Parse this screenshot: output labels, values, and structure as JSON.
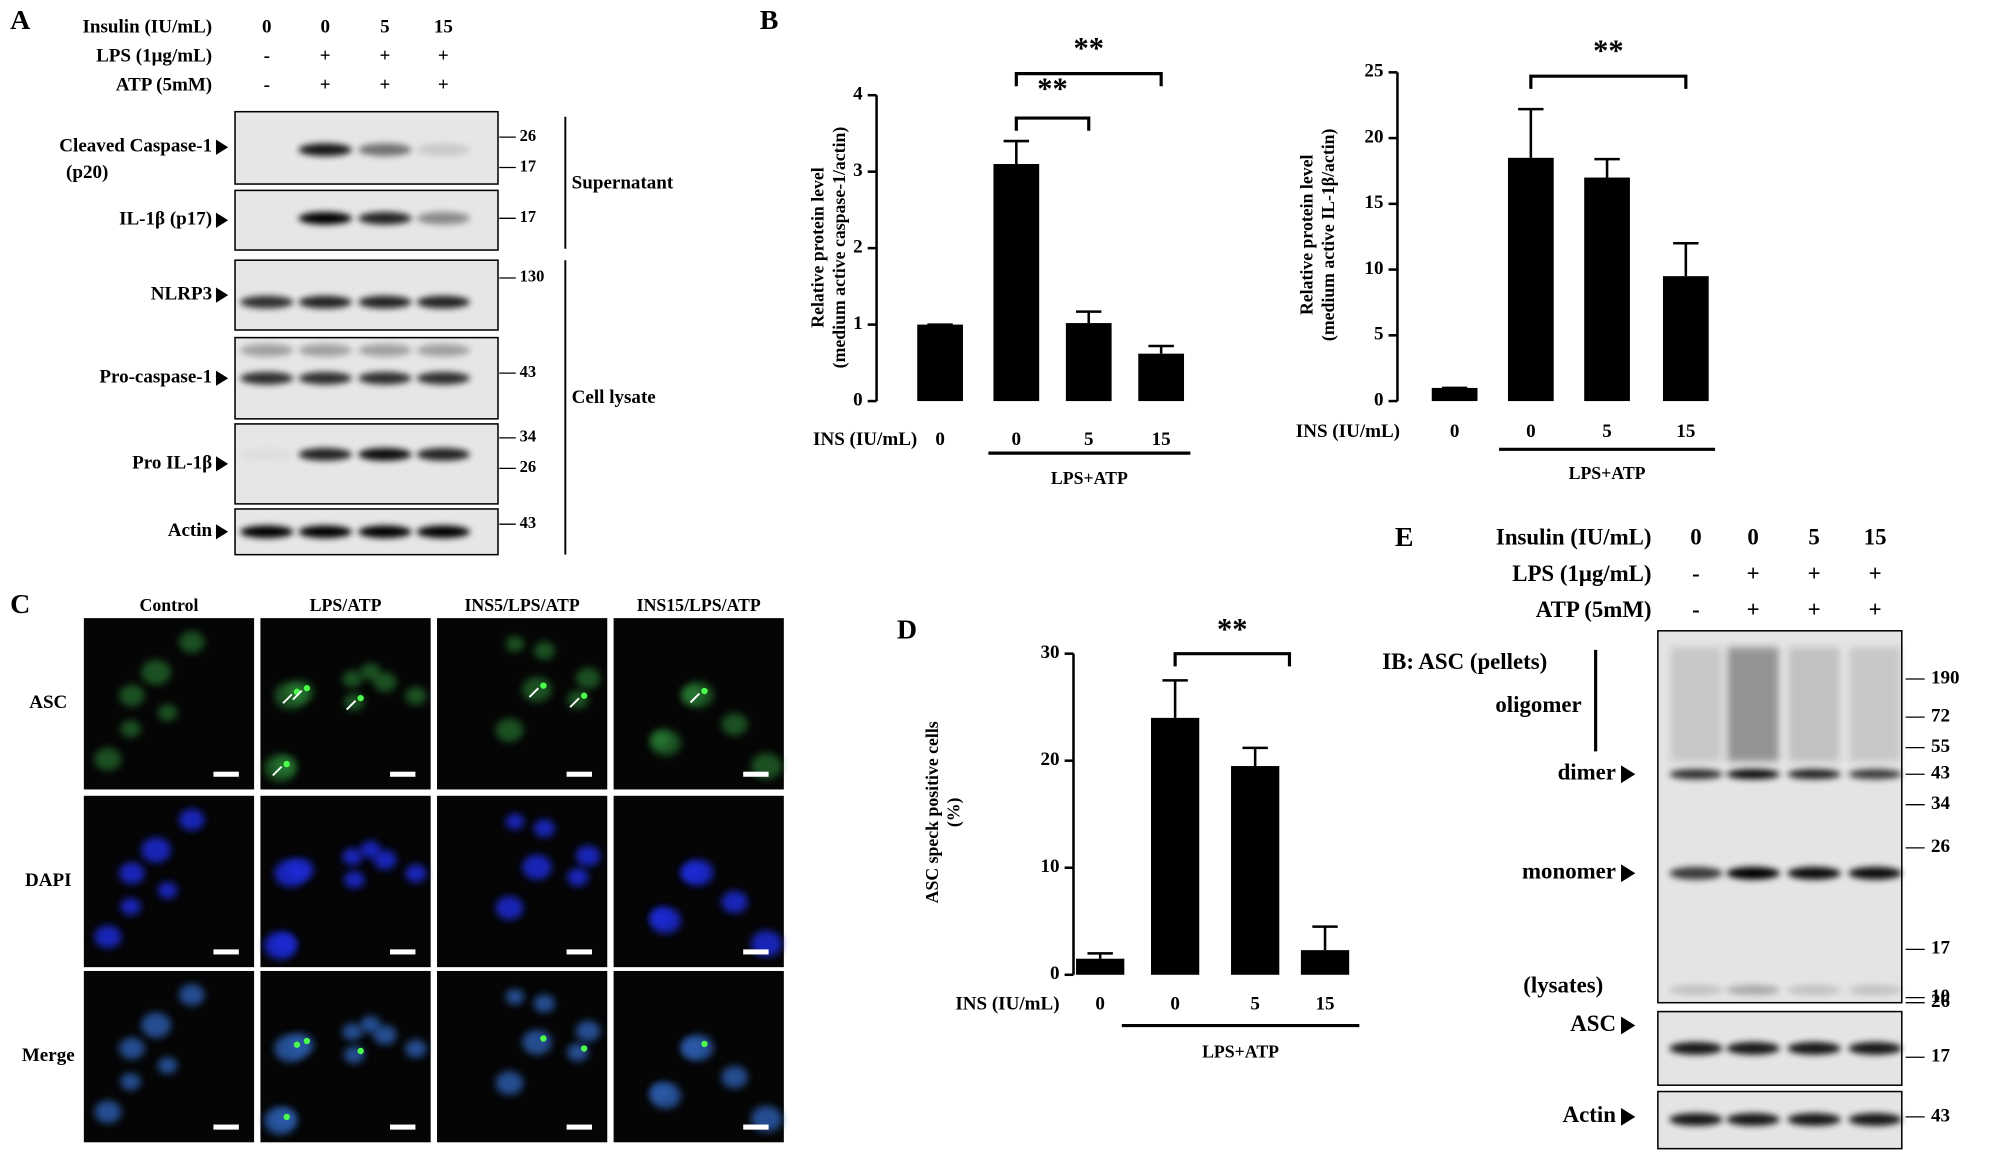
{
  "panels": {
    "A": {
      "label": "A",
      "conditions": [
        {
          "name": "Insulin (IU/mL)",
          "lanes": [
            "0",
            "0",
            "5",
            "15"
          ]
        },
        {
          "name": "LPS (1μg/mL)",
          "lanes": [
            "-",
            "+",
            "+",
            "+"
          ]
        },
        {
          "name": "ATP (5mM)",
          "lanes": [
            "-",
            "+",
            "+",
            "+"
          ]
        }
      ],
      "blots": [
        {
          "name": "Cleaved Caspase-1",
          "sub": "(p20)",
          "markers": [
            "26",
            "17"
          ]
        },
        {
          "name": "IL-1β (p17)",
          "markers": [
            "17"
          ]
        },
        {
          "name": "NLRP3",
          "markers": [
            "130"
          ]
        },
        {
          "name": "Pro-caspase-1",
          "markers": [
            "43"
          ]
        },
        {
          "name": "Pro IL-1β",
          "markers": [
            "34",
            "26"
          ]
        },
        {
          "name": "Actin",
          "markers": [
            "43"
          ]
        }
      ],
      "groups": [
        "Supernatant",
        "Cell lysate"
      ]
    },
    "C": {
      "label": "C",
      "columns": [
        "Control",
        "LPS/ATP",
        "INS5/LPS/ATP",
        "INS15/LPS/ATP"
      ],
      "rows": [
        "ASC",
        "DAPI",
        "Merge"
      ]
    },
    "E": {
      "label": "E",
      "conditions": [
        {
          "name": "Insulin (IU/mL)",
          "lanes": [
            "0",
            "0",
            "5",
            "15"
          ]
        },
        {
          "name": "LPS (1μg/mL)",
          "lanes": [
            "-",
            "+",
            "+",
            "+"
          ]
        },
        {
          "name": "ATP (5mM)",
          "lanes": [
            "-",
            "+",
            "+",
            "+"
          ]
        }
      ],
      "title": "IB: ASC (pellets)",
      "bands": [
        "oligomer",
        "dimer",
        "monomer"
      ],
      "markers": [
        "190",
        "72",
        "55",
        "43",
        "34",
        "26",
        "17",
        "10"
      ],
      "lysate_title": "(lysates)",
      "blots": [
        {
          "name": "ASC",
          "markers": [
            "26",
            "17"
          ]
        },
        {
          "name": "Actin",
          "markers": [
            "43"
          ]
        }
      ]
    }
  },
  "chart_data": [
    {
      "type": "bar",
      "panel_label": "B",
      "y_label": [
        "Relative protein level",
        "(medium active caspase-1/actin)"
      ],
      "x_label": "INS (IU/mL)",
      "categories": [
        "0",
        "0",
        "5",
        "15"
      ],
      "values": [
        1,
        3.1,
        1.02,
        0.62
      ],
      "errors": [
        0,
        0.3,
        0.15,
        0.1
      ],
      "color": "#000000",
      "ylim": [
        0,
        4
      ],
      "yticks": [
        0,
        1,
        2,
        3,
        4
      ],
      "group_label": "LPS+ATP",
      "annotations": [
        "**",
        "**"
      ]
    },
    {
      "type": "bar",
      "y_label": [
        "Relative protein level",
        "(medium active IL-1β/actin)"
      ],
      "x_label": "INS (IU/mL)",
      "categories": [
        "0",
        "0",
        "5",
        "15"
      ],
      "values": [
        1,
        18.5,
        17,
        9.5
      ],
      "errors": [
        0,
        3.7,
        1.4,
        2.5
      ],
      "color": "#000000",
      "ylim": [
        0,
        25
      ],
      "yticks": [
        0,
        5,
        10,
        15,
        20,
        25
      ],
      "group_label": "LPS+ATP",
      "annotations": [
        "**"
      ]
    },
    {
      "type": "bar",
      "panel_label": "D",
      "y_label": [
        "ASC speck positive cells",
        "(%)"
      ],
      "x_label": "INS (IU/mL)",
      "categories": [
        "0",
        "0",
        "5",
        "15"
      ],
      "values": [
        1.5,
        24,
        19.5,
        2.3
      ],
      "errors": [
        0.5,
        3.5,
        1.7,
        2.2
      ],
      "color": "#000000",
      "ylim": [
        0,
        30
      ],
      "yticks": [
        0,
        10,
        20,
        30
      ],
      "group_label": "LPS+ATP",
      "annotations": [
        "**"
      ]
    }
  ]
}
